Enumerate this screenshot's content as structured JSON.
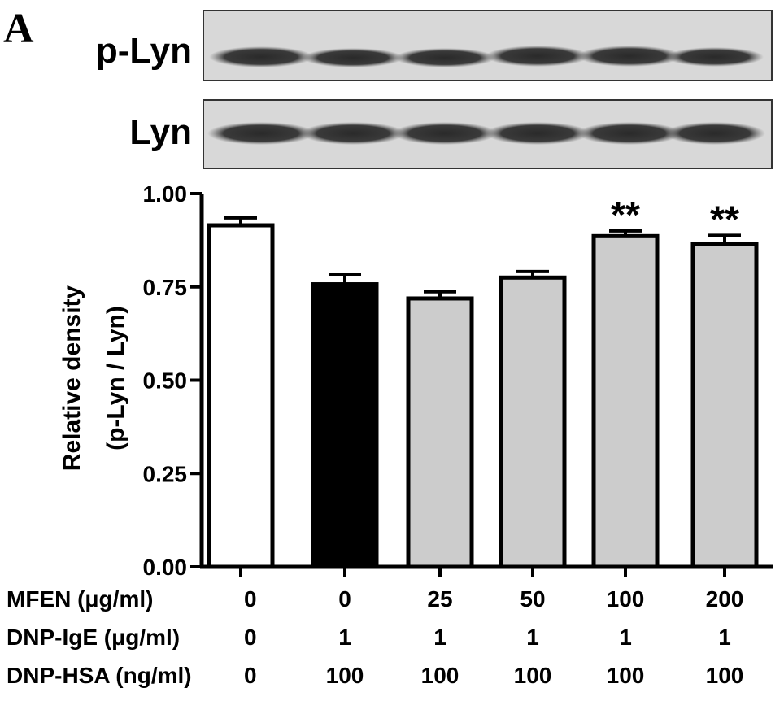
{
  "panel_label": "A",
  "blots": [
    {
      "label": "p-Lyn"
    },
    {
      "label": "Lyn"
    }
  ],
  "chart_data": {
    "type": "bar",
    "ylabel_line1": "Relative density",
    "ylabel_line2": "(p-Lyn / Lyn)",
    "ylim": [
      0,
      1.0
    ],
    "yticks": [
      "0.00",
      "0.25",
      "0.50",
      "0.75",
      "1.00"
    ],
    "ytick_values": [
      0,
      0.25,
      0.5,
      0.75,
      1.0
    ],
    "values": [
      0.915,
      0.757,
      0.719,
      0.775,
      0.886,
      0.866
    ],
    "errors": [
      0.02,
      0.025,
      0.018,
      0.016,
      0.014,
      0.022
    ],
    "annotations": [
      "",
      "",
      "",
      "",
      "**",
      "**"
    ],
    "bar_colors": [
      "#ffffff",
      "#000000",
      "#cccccc",
      "#cccccc",
      "#cccccc",
      "#cccccc"
    ],
    "grid": false
  },
  "conditions": [
    {
      "label": "MFEN (μg/ml)",
      "values": [
        "0",
        "0",
        "25",
        "50",
        "100",
        "200"
      ]
    },
    {
      "label": "DNP-IgE (μg/ml)",
      "values": [
        "0",
        "1",
        "1",
        "1",
        "1",
        "1"
      ]
    },
    {
      "label": "DNP-HSA (ng/ml)",
      "values": [
        "0",
        "100",
        "100",
        "100",
        "100",
        "100"
      ]
    }
  ]
}
